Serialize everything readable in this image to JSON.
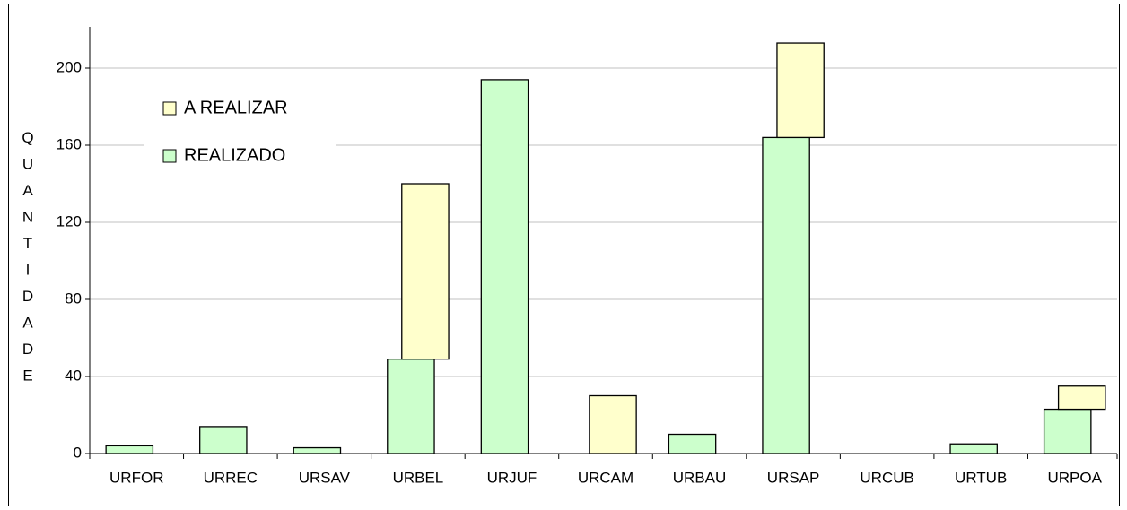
{
  "chart_data": {
    "type": "bar",
    "stacked": true,
    "y_label": "QUANTIDADE",
    "categories": [
      "URFOR",
      "URREC",
      "URSAV",
      "URBEL",
      "URJUF",
      "URCAM",
      "URBAU",
      "URSAP",
      "URCUB",
      "URTUB",
      "URPOA"
    ],
    "series": [
      {
        "name": "REALIZADO",
        "color": "#ccffcc",
        "values": [
          4,
          14,
          3,
          49,
          194,
          0,
          10,
          164,
          0,
          5,
          23
        ]
      },
      {
        "name": "A REALIZAR",
        "color": "#ffffcc",
        "values": [
          0,
          0,
          0,
          91,
          0,
          30,
          0,
          49,
          0,
          0,
          12
        ]
      }
    ],
    "ylim": [
      0,
      220
    ],
    "yticks": [
      0,
      40,
      80,
      120,
      160,
      200
    ],
    "grid": true,
    "legend": "upper left"
  }
}
